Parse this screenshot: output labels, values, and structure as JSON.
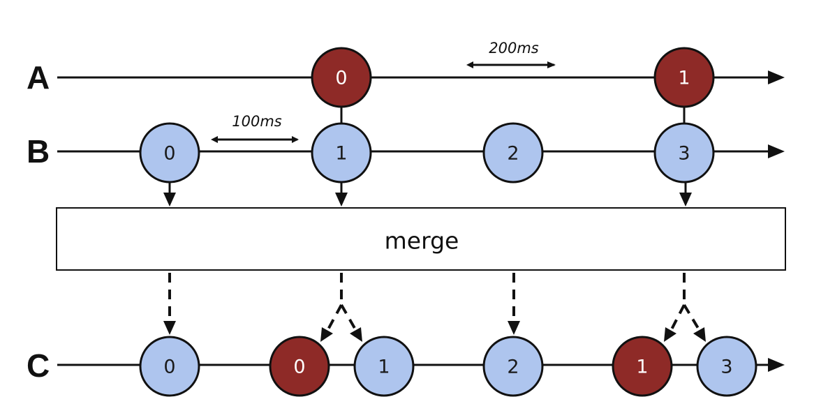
{
  "colors": {
    "red_marble": "#8e2a27",
    "blue_marble": "#aec5ee",
    "line": "#111111",
    "text_on_red": "#ffffff",
    "text_on_blue": "#1a1a1a"
  },
  "streams": {
    "a": {
      "label": "A",
      "marbles": [
        {
          "value": "0",
          "color": "red"
        },
        {
          "value": "1",
          "color": "red"
        }
      ]
    },
    "b": {
      "label": "B",
      "marbles": [
        {
          "value": "0",
          "color": "blue"
        },
        {
          "value": "1",
          "color": "blue"
        },
        {
          "value": "2",
          "color": "blue"
        },
        {
          "value": "3",
          "color": "blue"
        }
      ]
    },
    "c": {
      "label": "C",
      "marbles": [
        {
          "value": "0",
          "color": "blue"
        },
        {
          "value": "0",
          "color": "red"
        },
        {
          "value": "1",
          "color": "blue"
        },
        {
          "value": "2",
          "color": "blue"
        },
        {
          "value": "1",
          "color": "red"
        },
        {
          "value": "3",
          "color": "blue"
        }
      ]
    }
  },
  "intervals": {
    "a": "200ms",
    "b": "100ms"
  },
  "operator": {
    "label": "merge"
  }
}
